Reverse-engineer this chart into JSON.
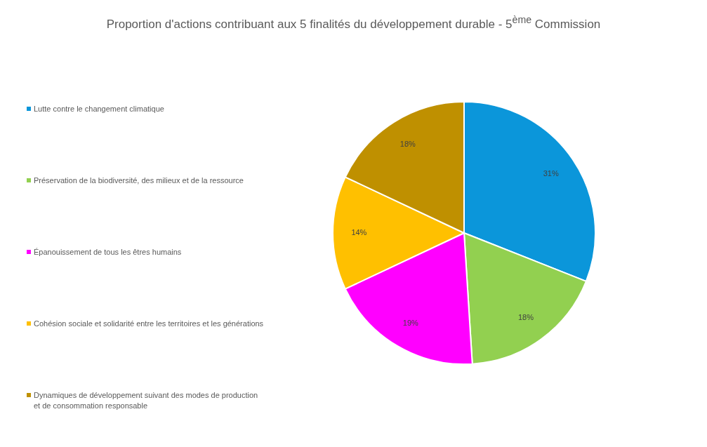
{
  "chart_data": {
    "type": "pie",
    "title": "Proportion d'actions contribuant aux 5 finalités du développement durable - 5$^{ème}$ Commission",
    "categories": [
      "Lutte contre le changement climatique",
      "Préservation de la biodiversité, des milieux et de la ressource",
      "Épanouissement  de tous les êtres humains",
      "Cohésion sociale et solidarité entre les territoires et les générations",
      "Dynamiques de développement suivant des modes de production et de consommation responsable"
    ],
    "values": [
      31,
      18,
      19,
      14,
      18
    ],
    "colors": [
      "#0b96da",
      "#92d050",
      "#ff00ff",
      "#ffc000",
      "#bf9000"
    ],
    "value_labels": [
      "31%",
      "18%",
      "19%",
      "14%",
      "18%"
    ],
    "legend": "left"
  }
}
